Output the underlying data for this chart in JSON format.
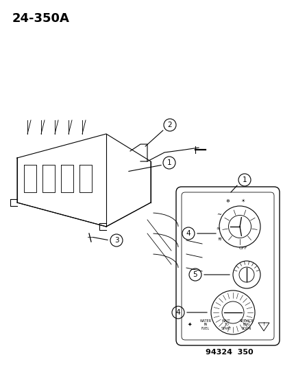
{
  "title": "24-350A",
  "footnote": "94324  350",
  "bg_color": "#ffffff",
  "line_color": "#000000",
  "label_numbers": [
    "1",
    "2",
    "3",
    "4",
    "5"
  ],
  "title_fontsize": 13,
  "footnote_fontsize": 8
}
